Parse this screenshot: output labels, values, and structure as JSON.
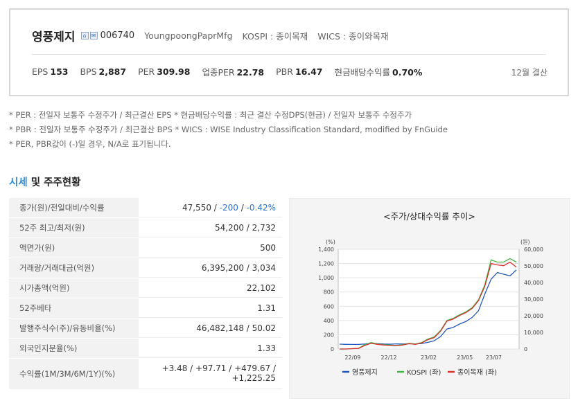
{
  "company": {
    "name": "영풍제지",
    "code": "006740",
    "english_name": "YoungpoongPaprMfg",
    "market": "KOSPI : 종이목재",
    "wics": "WICS : 종이와목재",
    "icons": [
      "home-icon",
      "mail-icon"
    ]
  },
  "metrics": [
    {
      "label": "EPS",
      "value": "153"
    },
    {
      "label": "BPS",
      "value": "2,887"
    },
    {
      "label": "PER",
      "value": "309.98"
    },
    {
      "label": "업종PER",
      "value": "22.78"
    },
    {
      "label": "PBR",
      "value": "16.47"
    },
    {
      "label": "현금배당수익률",
      "value": "0.70%"
    }
  ],
  "settlement": "12월 결산",
  "notes": [
    "* PER : 전일자 보통주 수정주가 / 최근결산 EPS * 현금배당수익률 : 최근 결산 수정DPS(현금) / 전일자 보통주 수정주가",
    "* PBR : 전일자 보통주 수정주가 / 최근결산 BPS * WICS : WISE Industry Classification Standard, modified by FnGuide",
    "* PER, PBR값이 (-)일 경우, N/A로 표기됩니다."
  ],
  "section": {
    "title_highlight": "시세",
    "title_rest": " 및 주주현황"
  },
  "table": [
    {
      "label": "종가(원)/전일대비/수익률",
      "value": "47,550",
      "change": "-200",
      "rate": "-0.42%"
    },
    {
      "label": "52주 최고/최저(원)",
      "value": "54,200 / 2,732"
    },
    {
      "label": "액면가(원)",
      "value": "500"
    },
    {
      "label": "거래량/거래대금(억원)",
      "value": "6,395,200 / 3,034"
    },
    {
      "label": "시가총액(억원)",
      "value": "22,102"
    },
    {
      "label": "52주베타",
      "value": "1.31"
    },
    {
      "label": "발행주식수(주)/유동비율(%)",
      "value": "46,482,148 / 50.02"
    },
    {
      "label": "외국인지분율(%)",
      "value": "1.33"
    },
    {
      "label": "수익률(1M/3M/6M/1Y)(%)",
      "line1": "+3.48 / +97.71 / +479.67 /",
      "line2": "+1,225.25"
    }
  ],
  "chart_title": "<주가/상대수익률 추이>",
  "chart_data": {
    "type": "line",
    "title": "<주가/상대수익률 추이>",
    "left_axis": {
      "unit": "(%)",
      "ticks": [
        "0",
        "200",
        "400",
        "600",
        "800",
        "1,000",
        "1,200",
        "1,400"
      ],
      "range": [
        0,
        1400
      ]
    },
    "right_axis": {
      "unit": "(원)",
      "ticks": [
        "0",
        "10,000",
        "20,000",
        "30,000",
        "40,000",
        "50,000",
        "60,000"
      ],
      "range": [
        0,
        60000
      ]
    },
    "x_ticks": [
      "22/09",
      "22/12",
      "23/02",
      "23/05",
      "23/07"
    ],
    "legend": [
      "영풍제지",
      "KOSPI (좌)",
      "종이목재 (좌)"
    ],
    "colors": {
      "영풍제지": "#2456b8",
      "KOSPI": "#49b34a",
      "종이목재": "#d9322f"
    },
    "series": [
      {
        "name": "영풍제지",
        "values": [
          2900,
          2800,
          2750,
          2732,
          3000,
          3500,
          3200,
          3000,
          2900,
          3100,
          3000,
          3200,
          3100,
          3300,
          4000,
          5000,
          7500,
          12000,
          13000,
          15000,
          16500,
          19000,
          23000,
          33000,
          42000,
          46000,
          45000,
          44000,
          47550
        ]
      },
      {
        "name": "KOSPI (좌)",
        "values": [
          0,
          0,
          5,
          10,
          60,
          90,
          70,
          60,
          55,
          50,
          60,
          80,
          70,
          90,
          140,
          170,
          260,
          400,
          430,
          480,
          520,
          580,
          690,
          900,
          1250,
          1220,
          1220,
          1270,
          1220
        ]
      },
      {
        "name": "종이목재 (좌)",
        "values": [
          0,
          0,
          5,
          8,
          50,
          80,
          65,
          55,
          50,
          45,
          55,
          75,
          65,
          85,
          130,
          160,
          250,
          390,
          420,
          470,
          510,
          570,
          680,
          880,
          1200,
          1180,
          1170,
          1220,
          1150
        ]
      }
    ]
  }
}
